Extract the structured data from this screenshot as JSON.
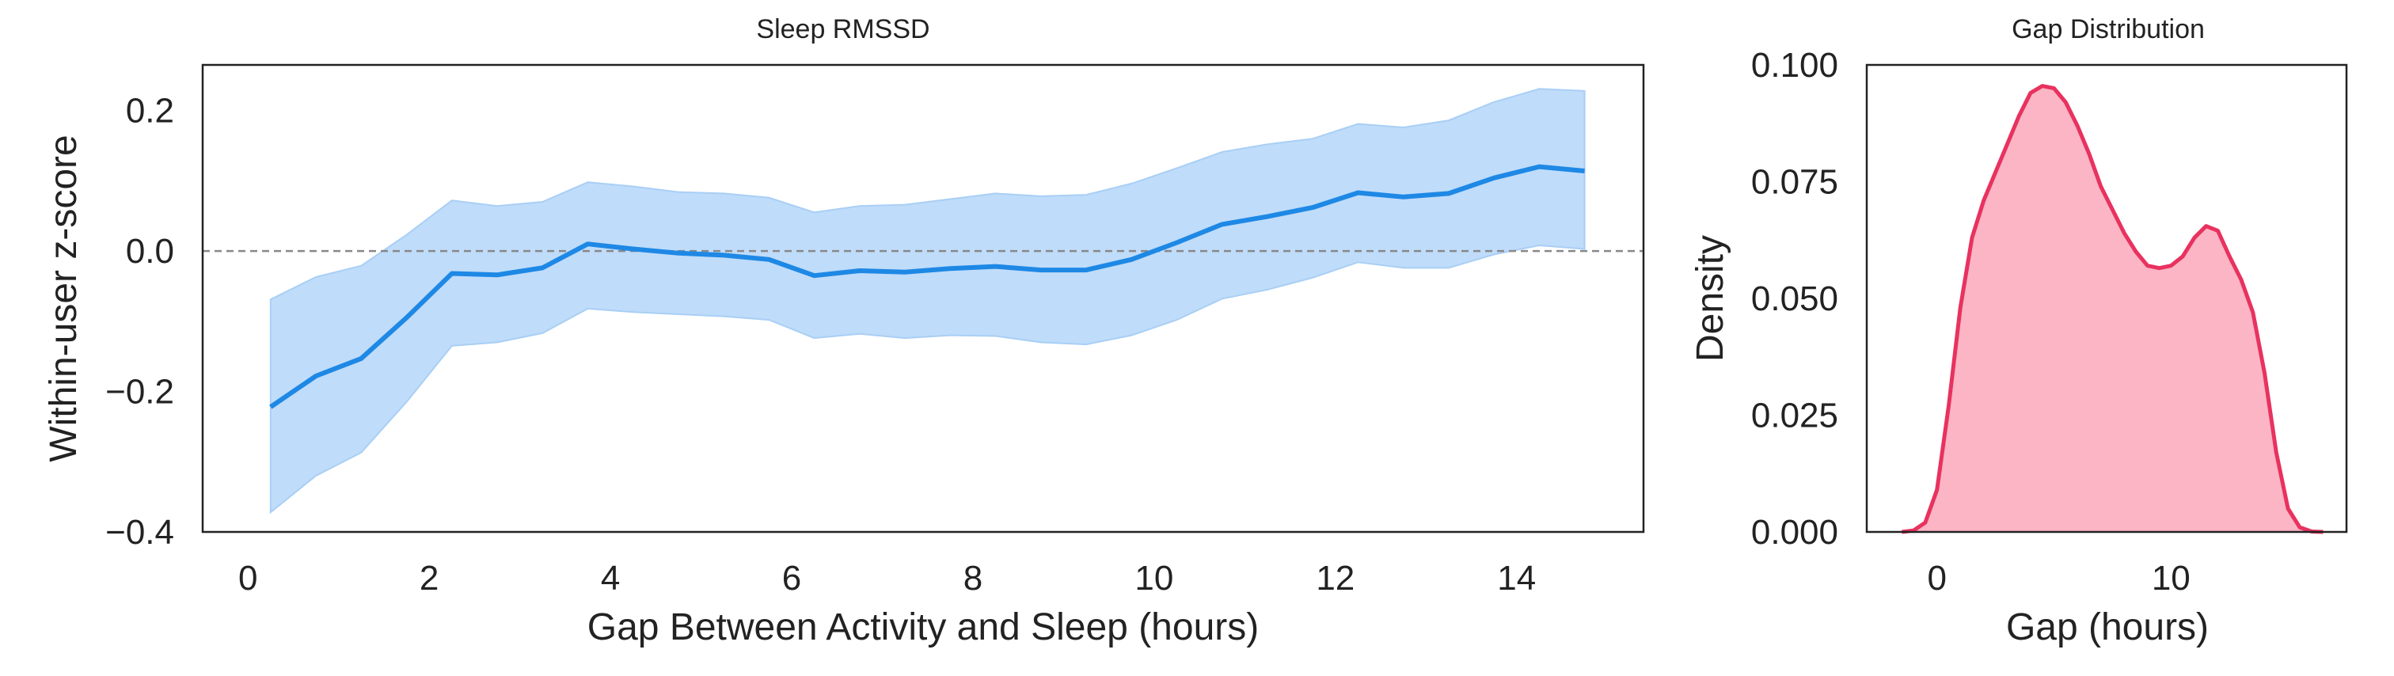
{
  "chart_data": [
    {
      "type": "line",
      "title": "Sleep RMSSD",
      "xlabel": "Gap Between Activity and Sleep (hours)",
      "ylabel": "Within-user z-score",
      "xlim": [
        -0.5,
        15.4
      ],
      "ylim": [
        -0.4,
        0.265
      ],
      "xticks": [
        0,
        2,
        4,
        6,
        8,
        10,
        12,
        14
      ],
      "yticks": [
        -0.4,
        -0.2,
        0.0,
        0.2
      ],
      "ytick_labels": [
        "−0.4",
        "−0.2",
        "0.0",
        "0.2"
      ],
      "reference_line": {
        "y": 0.0,
        "style": "dashed",
        "color": "#888888"
      },
      "grid": false,
      "line_color": "#1e88e5",
      "band_color": "#bfdcfa",
      "series": [
        {
          "x": [
            0.25,
            0.75,
            1.25,
            1.75,
            2.25,
            2.75,
            3.25,
            3.75,
            4.25,
            4.75,
            5.25,
            5.75,
            6.25,
            6.75,
            7.25,
            7.75,
            8.25,
            8.75,
            9.25,
            9.75,
            10.25,
            10.75,
            11.25,
            11.75,
            12.25,
            12.75,
            13.25,
            13.75,
            14.25,
            14.75
          ],
          "y": [
            -0.222,
            -0.178,
            -0.153,
            -0.095,
            -0.032,
            -0.034,
            -0.024,
            0.01,
            0.003,
            -0.003,
            -0.006,
            -0.012,
            -0.035,
            -0.028,
            -0.03,
            -0.025,
            -0.022,
            -0.027,
            -0.027,
            -0.012,
            0.012,
            0.038,
            0.049,
            0.062,
            0.083,
            0.077,
            0.082,
            0.104,
            0.12,
            0.114
          ],
          "lower": [
            -0.372,
            -0.32,
            -0.287,
            -0.215,
            -0.135,
            -0.13,
            -0.117,
            -0.082,
            -0.087,
            -0.09,
            -0.093,
            -0.098,
            -0.124,
            -0.118,
            -0.124,
            -0.12,
            -0.121,
            -0.13,
            -0.133,
            -0.12,
            -0.098,
            -0.068,
            -0.055,
            -0.038,
            -0.016,
            -0.024,
            -0.024,
            -0.005,
            0.008,
            0.003
          ],
          "upper": [
            -0.069,
            -0.037,
            -0.021,
            0.023,
            0.072,
            0.064,
            0.07,
            0.098,
            0.092,
            0.084,
            0.082,
            0.076,
            0.055,
            0.064,
            0.066,
            0.074,
            0.082,
            0.078,
            0.08,
            0.096,
            0.118,
            0.141,
            0.152,
            0.16,
            0.181,
            0.176,
            0.186,
            0.212,
            0.231,
            0.228
          ]
        }
      ]
    },
    {
      "type": "area",
      "title": "Gap Distribution",
      "xlabel": "Gap (hours)",
      "ylabel": "Density",
      "xlim": [
        -3.0,
        17.5
      ],
      "ylim": [
        0.0,
        0.1
      ],
      "xticks": [
        0,
        10
      ],
      "yticks": [
        0.0,
        0.025,
        0.05,
        0.075,
        0.1
      ],
      "ytick_labels": [
        "0.000",
        "0.025",
        "0.050",
        "0.075",
        "0.100"
      ],
      "grid": false,
      "line_color": "#e8325f",
      "fill_color": "#fbb5c5",
      "series": [
        {
          "x": [
            -1.5,
            -1.0,
            -0.5,
            0.0,
            0.5,
            1.0,
            1.5,
            2.0,
            2.5,
            3.0,
            3.5,
            4.0,
            4.5,
            5.0,
            5.5,
            6.0,
            6.5,
            7.0,
            7.5,
            8.0,
            8.5,
            9.0,
            9.5,
            10.0,
            10.5,
            11.0,
            11.5,
            12.0,
            12.5,
            13.0,
            13.5,
            14.0,
            14.5,
            15.0,
            15.5,
            16.0,
            16.5
          ],
          "y": [
            0.0,
            0.0003,
            0.002,
            0.009,
            0.027,
            0.048,
            0.063,
            0.071,
            0.077,
            0.083,
            0.089,
            0.094,
            0.0955,
            0.095,
            0.092,
            0.087,
            0.081,
            0.074,
            0.069,
            0.064,
            0.06,
            0.057,
            0.0565,
            0.057,
            0.059,
            0.063,
            0.0655,
            0.0645,
            0.059,
            0.054,
            0.047,
            0.034,
            0.017,
            0.005,
            0.001,
            0.0001,
            0.0
          ]
        }
      ]
    }
  ]
}
